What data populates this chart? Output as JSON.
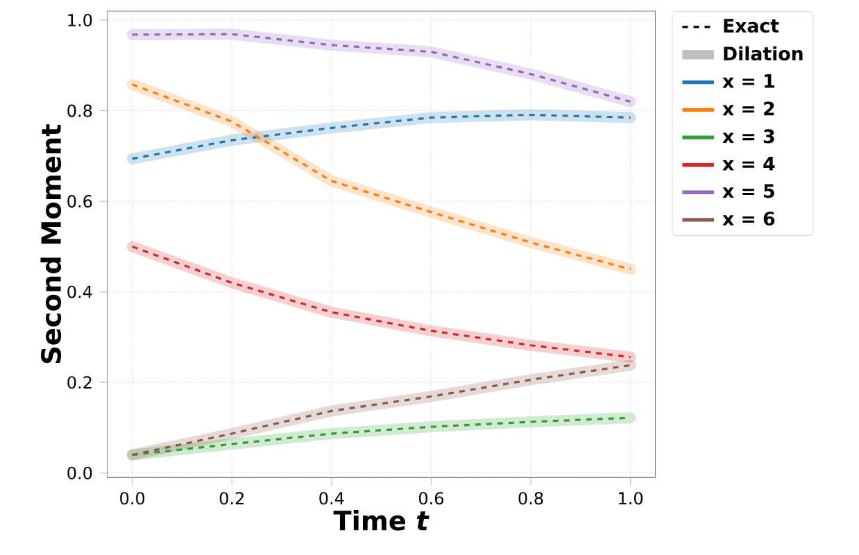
{
  "chart_data": {
    "type": "line",
    "xlabel": "Time *t*",
    "ylabel": "Second Moment",
    "x": [
      0,
      0.2,
      0.4,
      0.6,
      0.8,
      1.0
    ],
    "xlim": [
      -0.05,
      1.05
    ],
    "ylim": [
      -0.01,
      1.02
    ],
    "xticks": [
      {
        "value": 0,
        "label": "0.0"
      },
      0.2,
      0.4,
      0.6,
      0.8,
      {
        "value": 1.0,
        "label": "1.0"
      }
    ],
    "yticks": [
      {
        "value": 0,
        "label": "0.0"
      },
      0.2,
      0.4,
      0.6,
      0.8,
      {
        "value": 1.0,
        "label": "1.0"
      }
    ],
    "grid": true,
    "legend": "right",
    "series": [
      {
        "name": "Exact",
        "color": "#000000",
        "line_style": "dashed",
        "values": [
          null,
          null,
          null,
          null,
          null,
          null
        ]
      },
      {
        "name": "Dilation",
        "color": "#bfbfbf",
        "line_style": "solid",
        "values": [
          null,
          null,
          null,
          null,
          null,
          null
        ]
      },
      {
        "name": "x = 1",
        "color": "#1f77b4",
        "line_style": "solid",
        "values": [
          0.694,
          0.735,
          0.762,
          0.785,
          0.791,
          0.785
        ]
      },
      {
        "name": "x = 2",
        "color": "#ff7f0e",
        "line_style": "solid",
        "values": [
          0.858,
          0.776,
          0.645,
          0.576,
          0.509,
          0.45
        ]
      },
      {
        "name": "x = 3",
        "color": "#2ca02c",
        "line_style": "solid",
        "values": [
          0.04,
          0.064,
          0.087,
          0.102,
          0.113,
          0.122
        ]
      },
      {
        "name": "x = 4",
        "color": "#d62728",
        "line_style": "solid",
        "values": [
          0.5,
          0.42,
          0.355,
          0.314,
          0.282,
          0.256
        ]
      },
      {
        "name": "x = 5",
        "color": "#9467bd",
        "line_style": "solid",
        "values": [
          0.968,
          0.969,
          0.945,
          0.93,
          0.881,
          0.82
        ]
      },
      {
        "name": "x = 6",
        "color": "#8c564b",
        "line_style": "solid",
        "values": [
          0.04,
          0.087,
          0.137,
          0.169,
          0.206,
          0.238
        ]
      },
      {
        "color": "#1f77b4",
        "line_style": "dashed",
        "values": [
          0.694,
          0.735,
          0.762,
          0.785,
          0.791,
          0.785
        ]
      },
      {
        "color": "#ff7f0e",
        "line_style": "dashed",
        "values": [
          0.858,
          0.776,
          0.645,
          0.576,
          0.509,
          0.45
        ]
      },
      {
        "color": "#2ca02c",
        "line_style": "dashed",
        "values": [
          0.04,
          0.064,
          0.087,
          0.102,
          0.113,
          0.122
        ]
      },
      {
        "color": "#d62728",
        "line_style": "dashed",
        "values": [
          0.5,
          0.42,
          0.355,
          0.314,
          0.282,
          0.256
        ]
      },
      {
        "color": "#9467bd",
        "line_style": "dashed",
        "values": [
          0.968,
          0.969,
          0.945,
          0.93,
          0.881,
          0.82
        ]
      },
      {
        "color": "#8c564b",
        "line_style": "dashed",
        "values": [
          0.04,
          0.087,
          0.137,
          0.169,
          0.206,
          0.238
        ]
      }
    ]
  }
}
